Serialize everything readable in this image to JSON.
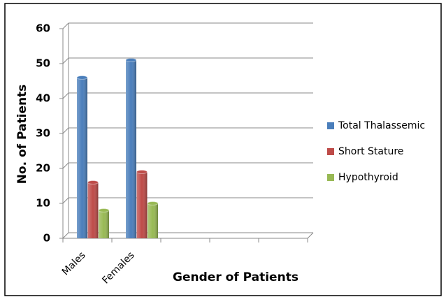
{
  "chart_data": {
    "type": "bar",
    "x_label": "Gender of Patients",
    "y_label": "No. of Patients",
    "categories": [
      "Males",
      "Females",
      null,
      null,
      null
    ],
    "series": [
      {
        "name": "Total Thalassemic",
        "color": "#4a7ebb",
        "values": [
          46,
          51,
          null,
          null,
          null
        ]
      },
      {
        "name": "Short Stature",
        "color": "#be4b48",
        "values": [
          16,
          19,
          null,
          null,
          null
        ]
      },
      {
        "name": "Hypothyroid",
        "color": "#98b954",
        "values": [
          8,
          10,
          null,
          null,
          null
        ]
      }
    ],
    "ylim": [
      0,
      60
    ],
    "yticks": [
      0,
      10,
      20,
      30,
      40,
      50,
      60
    ],
    "grid": true,
    "legend": "right"
  }
}
